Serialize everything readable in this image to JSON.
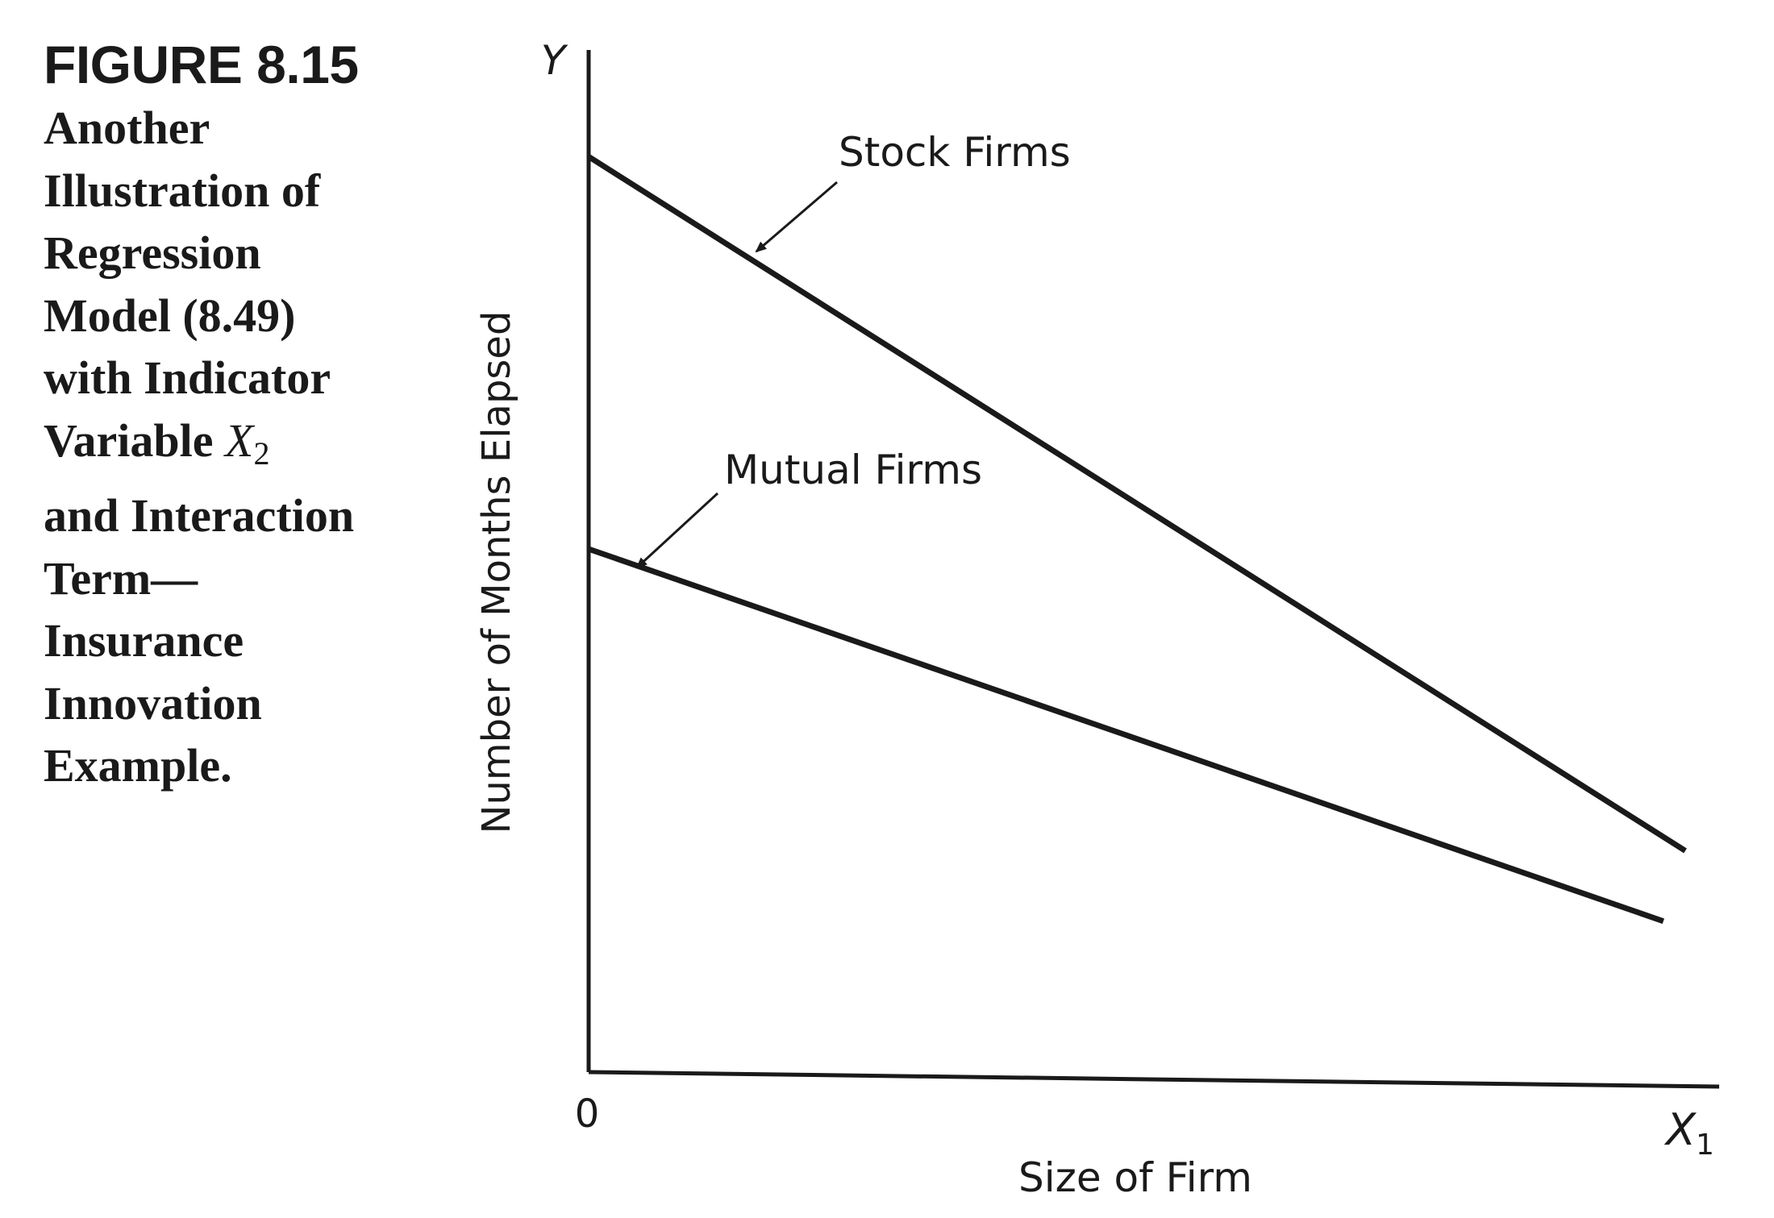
{
  "figure": {
    "number": "FIGURE 8.15",
    "caption_lines": [
      "Another",
      "Illustration of",
      "Regression",
      "Model (8.49)",
      "with Indicator"
    ],
    "caption_var_word": "Variable ",
    "caption_var_symbol": "X",
    "caption_var_sub": "2",
    "caption_lines_after": [
      "and Interaction",
      "Term—",
      "Insurance",
      "Innovation",
      "Example."
    ]
  },
  "chart_data": {
    "type": "line",
    "ylabel": "Number of Months Elapsed",
    "xlabel": "Size of Firm",
    "y_axis_symbol": "Y",
    "x_axis_symbol": "X",
    "x_axis_symbol_sub": "1",
    "origin_label": "0",
    "xlim": [
      0,
      100
    ],
    "ylim": [
      0,
      100
    ],
    "grid": false,
    "series": [
      {
        "name": "Stock Firms",
        "x": [
          0,
          100
        ],
        "y": [
          91,
          22
        ]
      },
      {
        "name": "Mutual Firms",
        "x": [
          0,
          98
        ],
        "y": [
          52,
          15
        ]
      }
    ]
  }
}
